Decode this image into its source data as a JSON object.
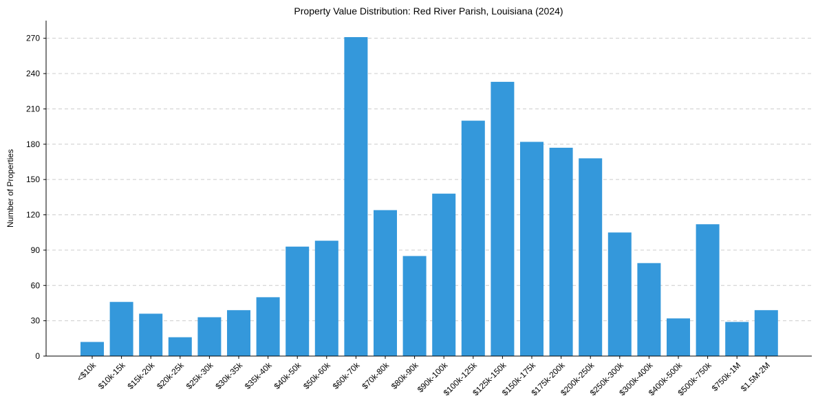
{
  "chart_data": {
    "type": "bar",
    "title": "Property Value Distribution: Red River Parish, Louisiana (2024)",
    "xlabel": "",
    "ylabel": "Number of Properties",
    "categories": [
      "<$10k",
      "$10k-15k",
      "$15k-20k",
      "$20k-25k",
      "$25k-30k",
      "$30k-35k",
      "$35k-40k",
      "$40k-50k",
      "$50k-60k",
      "$60k-70k",
      "$70k-80k",
      "$80k-90k",
      "$90k-100k",
      "$100k-125k",
      "$125k-150k",
      "$150k-175k",
      "$175k-200k",
      "$200k-250k",
      "$250k-300k",
      "$300k-400k",
      "$400k-500k",
      "$500k-750k",
      "$750k-1M",
      "$1.5M-2M"
    ],
    "values": [
      12,
      46,
      36,
      16,
      33,
      39,
      50,
      93,
      98,
      271,
      124,
      85,
      138,
      200,
      233,
      182,
      177,
      168,
      105,
      79,
      32,
      112,
      29,
      39
    ],
    "ylim": [
      0,
      285
    ],
    "yticks": [
      0,
      30,
      60,
      90,
      120,
      150,
      180,
      210,
      240,
      270
    ],
    "grid": "horizontal dashed",
    "bar_color": "#3498db",
    "legend": "none"
  }
}
